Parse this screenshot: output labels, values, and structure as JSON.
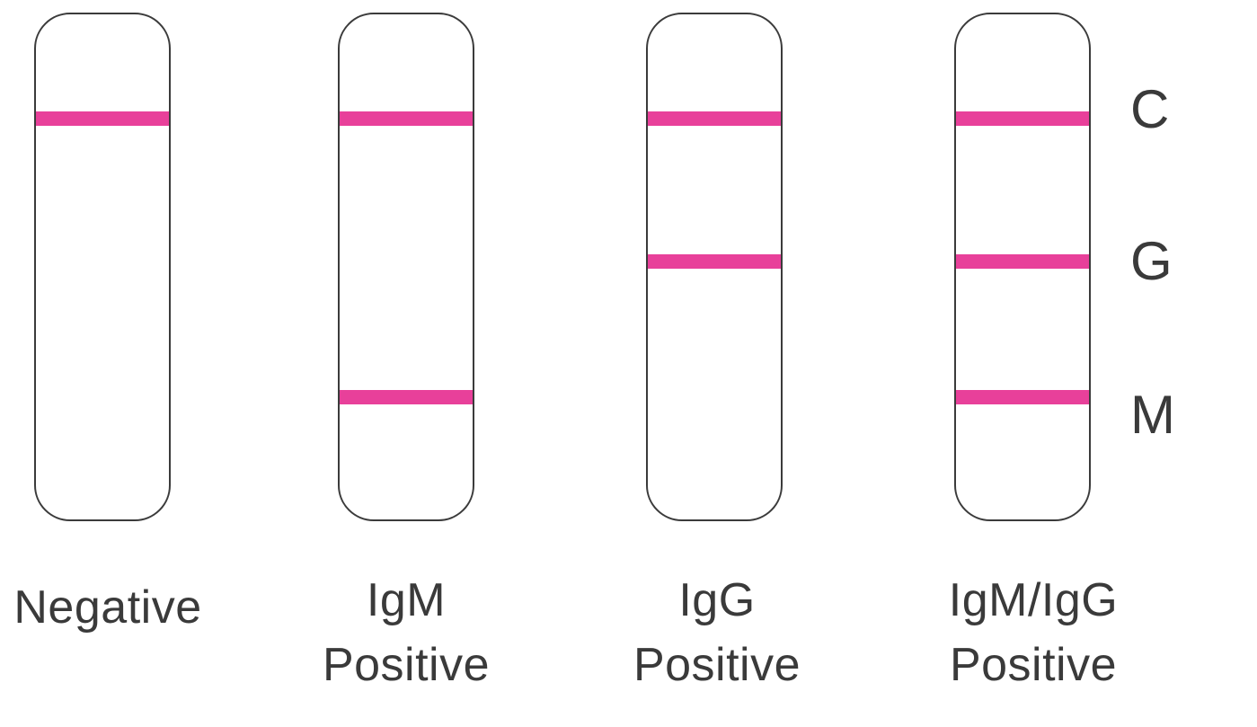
{
  "strips": [
    {
      "caption_lines": [
        "Negative"
      ],
      "bands": [
        "C"
      ]
    },
    {
      "caption_lines": [
        "IgM",
        "Positive"
      ],
      "bands": [
        "C",
        "M"
      ]
    },
    {
      "caption_lines": [
        "IgG",
        "Positive"
      ],
      "bands": [
        "C",
        "G"
      ]
    },
    {
      "caption_lines": [
        "IgM/IgG",
        "Positive"
      ],
      "bands": [
        "C",
        "G",
        "M"
      ]
    }
  ],
  "band_labels": {
    "c": "C",
    "g": "G",
    "m": "M"
  },
  "colors": {
    "band": "#e8409a",
    "outline": "#3b3b3b",
    "text": "#3a3a3a"
  }
}
